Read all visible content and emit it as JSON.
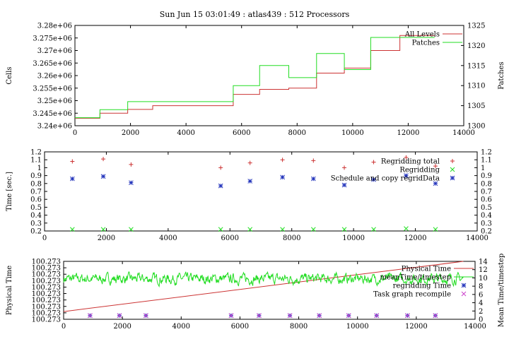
{
  "figure_title": "Sun Jun 15 03:01:49 : atlas439 : 512 Processors",
  "colors": {
    "red": "#cc3333",
    "green": "#22dd22",
    "blue": "#2233bb",
    "magenta": "#cc44cc",
    "axis": "#000000",
    "background": "#ffffff"
  },
  "chart_data": [
    {
      "type": "line",
      "title": "Sun Jun 15 03:01:49 : atlas439 : 512 Processors",
      "ylabel": "Cells",
      "y2label": "Patches",
      "xlim": [
        0,
        14000
      ],
      "ylim": [
        3240000,
        3280000
      ],
      "y2lim": [
        1300,
        1325
      ],
      "grid": false,
      "legend_position": "top-right",
      "xticks": [
        "0",
        "2000",
        "4000",
        "6000",
        "8000",
        "10000",
        "12000",
        "14000"
      ],
      "yticks": [
        "3.24e+06",
        "3.245e+06",
        "3.25e+06",
        "3.255e+06",
        "3.26e+06",
        "3.265e+06",
        "3.27e+06",
        "3.275e+06",
        "3.28e+06"
      ],
      "y2ticks": [
        "1300",
        "1305",
        "1310",
        "1315",
        "1320",
        "1325"
      ],
      "series": [
        {
          "name": "All Levels",
          "style": "step",
          "axis": "left",
          "color": "#cc3333",
          "x": [
            0,
            900,
            1900,
            2800,
            5700,
            6650,
            7700,
            8700,
            9700,
            10650,
            11700,
            12950
          ],
          "y": [
            3243000,
            3245000,
            3246500,
            3248000,
            3252500,
            3254500,
            3255000,
            3261000,
            3263000,
            3270000,
            3276000,
            3276000
          ]
        },
        {
          "name": "Patches",
          "style": "step",
          "axis": "right",
          "color": "#22dd22",
          "x": [
            0,
            900,
            1900,
            2800,
            5700,
            6650,
            7700,
            8700,
            9700,
            10650,
            11700,
            12950
          ],
          "y": [
            1302,
            1304,
            1306,
            1306,
            1310,
            1315,
            1312,
            1318,
            1314,
            1322,
            1322,
            1322
          ]
        }
      ]
    },
    {
      "type": "scatter",
      "ylabel": "Time [sec.]",
      "xlim": [
        0,
        14000
      ],
      "ylim": [
        0.2,
        1.2
      ],
      "y2lim": [
        0.2,
        1.2
      ],
      "grid": false,
      "legend_position": "top-right",
      "xticks": [
        "0",
        "2000",
        "4000",
        "6000",
        "8000",
        "10000",
        "12000",
        "14000"
      ],
      "yticks": [
        "0.2",
        "0.3",
        "0.4",
        "0.5",
        "0.6",
        "0.7",
        "0.8",
        "0.9",
        "1",
        "1.1",
        "1.2"
      ],
      "y2ticks": [
        "0.2",
        "0.3",
        "0.4",
        "0.5",
        "0.6",
        "0.7",
        "0.8",
        "0.9",
        "1",
        "1.1",
        "1.2"
      ],
      "series": [
        {
          "name": "Regridding total",
          "marker": "plus",
          "color": "#cc3333",
          "x": [
            900,
            1900,
            2800,
            5700,
            6650,
            7700,
            8700,
            9700,
            10650,
            11700,
            12650
          ],
          "y": [
            1.08,
            1.11,
            1.04,
            1.0,
            1.06,
            1.1,
            1.09,
            1.0,
            1.07,
            1.13,
            1.02
          ]
        },
        {
          "name": "Regridding",
          "marker": "x",
          "color": "#22dd22",
          "x": [
            900,
            1900,
            2800,
            5700,
            6650,
            7700,
            8700,
            9700,
            10650,
            11700,
            12650
          ],
          "y": [
            0.22,
            0.22,
            0.22,
            0.22,
            0.22,
            0.22,
            0.22,
            0.22,
            0.22,
            0.23,
            0.22
          ]
        },
        {
          "name": "Schedule and copy regridData",
          "marker": "star",
          "color": "#2233bb",
          "x": [
            900,
            1900,
            2800,
            5700,
            6650,
            7700,
            8700,
            9700,
            10650,
            11700,
            12650
          ],
          "y": [
            0.86,
            0.89,
            0.81,
            0.77,
            0.83,
            0.88,
            0.86,
            0.78,
            0.85,
            0.9,
            0.8
          ]
        }
      ]
    },
    {
      "type": "line",
      "ylabel": "Physical Time",
      "y2label": "Mean Time/timestep",
      "xlim": [
        0,
        14000
      ],
      "ylim": [
        0,
        9
      ],
      "y2lim": [
        0,
        14
      ],
      "grid": false,
      "legend_position": "top-right",
      "xticks": [
        "0",
        "2000",
        "4000",
        "6000",
        "8000",
        "10000",
        "12000",
        "14000"
      ],
      "yticks": [
        "100.273",
        "100.273",
        "100.273",
        "100.273",
        "100.273",
        "100.273",
        "100.273",
        "100.273",
        "100.273",
        "100.273"
      ],
      "y2ticks": [
        "0",
        "2",
        "4",
        "6",
        "8",
        "10",
        "12",
        "14"
      ],
      "series": [
        {
          "name": "Physical Time",
          "style": "line",
          "axis": "left",
          "color": "#cc3333",
          "x": [
            0,
            13600
          ],
          "y": [
            1.2,
            9.0
          ]
        },
        {
          "name": "meanTime/timestep",
          "style": "noisy-line",
          "axis": "right",
          "color": "#22dd22",
          "x_range": [
            0,
            13600
          ],
          "mean": 9.8,
          "spread": 0.9
        },
        {
          "name": "regridding Time",
          "marker": "star",
          "axis": "right",
          "color": "#2233bb",
          "x": [
            900,
            1900,
            2800,
            5700,
            6650,
            7700,
            8700,
            9700,
            10650,
            11700,
            12650
          ],
          "y": [
            0.9,
            0.9,
            0.9,
            0.9,
            0.9,
            0.9,
            0.9,
            0.9,
            0.9,
            0.9,
            0.9
          ]
        },
        {
          "name": "Task graph recompile",
          "marker": "x",
          "axis": "right",
          "color": "#cc44cc",
          "x": [
            900,
            1900,
            2800,
            5700,
            6650,
            7700,
            8700,
            9700,
            10650,
            11700,
            12650
          ],
          "y": [
            0.9,
            0.9,
            0.9,
            0.9,
            0.9,
            0.9,
            0.9,
            0.9,
            0.9,
            0.9,
            0.9
          ]
        }
      ]
    }
  ]
}
